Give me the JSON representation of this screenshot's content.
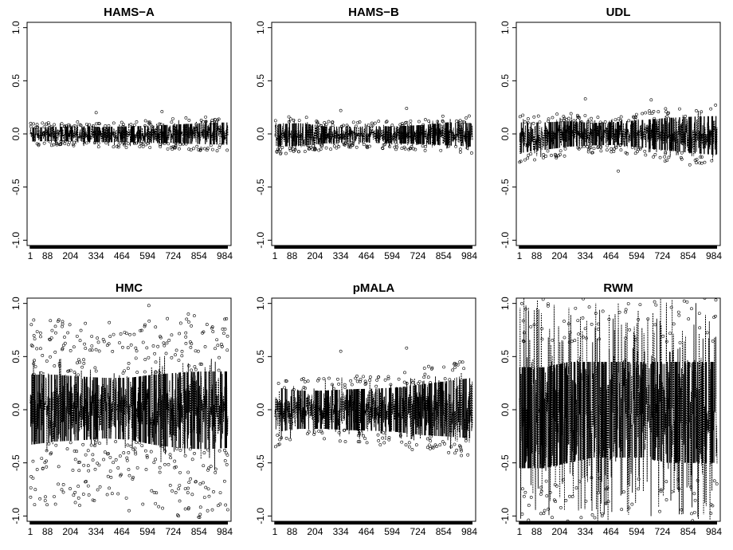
{
  "chart_data": [
    {
      "type": "line",
      "title": "HAMS−A",
      "xlabel": "",
      "ylabel": "",
      "ylim": [
        -1.05,
        1.05
      ],
      "y_ticks": [
        "-1.0",
        "-0.5",
        "0.0",
        "0.5",
        "1.0"
      ],
      "x_ticks": [
        "1",
        "88",
        "204",
        "334",
        "464",
        "594",
        "724",
        "854",
        "984"
      ],
      "x_range": [
        1,
        1000
      ],
      "center": 0.0,
      "envelope_low": [
        -0.12,
        -0.11,
        -0.12,
        -0.13,
        -0.13,
        -0.14,
        -0.15,
        -0.16,
        -0.17
      ],
      "envelope_high": [
        0.1,
        0.11,
        0.12,
        0.11,
        0.12,
        0.13,
        0.15,
        0.17,
        0.18
      ],
      "outliers_low": [],
      "outliers_high": [
        0.2,
        0.21
      ]
    },
    {
      "type": "line",
      "title": "HAMS−B",
      "xlabel": "",
      "ylabel": "",
      "ylim": [
        -1.05,
        1.05
      ],
      "y_ticks": [
        "-1.0",
        "-0.5",
        "0.0",
        "0.5",
        "1.0"
      ],
      "x_ticks": [
        "1",
        "88",
        "204",
        "334",
        "464",
        "594",
        "724",
        "854",
        "984"
      ],
      "x_range": [
        1,
        1000
      ],
      "center": 0.0,
      "envelope_low": [
        -0.2,
        -0.19,
        -0.15,
        -0.13,
        -0.14,
        -0.15,
        -0.16,
        -0.18,
        -0.2
      ],
      "envelope_high": [
        0.15,
        0.17,
        0.12,
        0.11,
        0.12,
        0.12,
        0.14,
        0.18,
        0.17
      ],
      "outliers_low": [],
      "outliers_high": [
        0.22,
        0.24
      ]
    },
    {
      "type": "line",
      "title": "UDL",
      "xlabel": "",
      "ylabel": "",
      "ylim": [
        -1.05,
        1.05
      ],
      "y_ticks": [
        "-1.0",
        "-0.5",
        "0.0",
        "0.5",
        "1.0"
      ],
      "x_ticks": [
        "1",
        "88",
        "204",
        "334",
        "464",
        "594",
        "724",
        "854",
        "984"
      ],
      "x_range": [
        1,
        1000
      ],
      "center": 0.0,
      "envelope_low": [
        -0.3,
        -0.25,
        -0.2,
        -0.18,
        -0.17,
        -0.22,
        -0.26,
        -0.3,
        -0.33
      ],
      "envelope_high": [
        0.18,
        0.18,
        0.2,
        0.17,
        0.19,
        0.22,
        0.25,
        0.27,
        0.28
      ],
      "outliers_low": [
        -0.35
      ],
      "outliers_high": [
        0.33,
        0.32
      ]
    },
    {
      "type": "line",
      "title": "HMC",
      "xlabel": "",
      "ylabel": "",
      "ylim": [
        -1.05,
        1.05
      ],
      "y_ticks": [
        "-1.0",
        "-0.5",
        "0.0",
        "0.5",
        "1.0"
      ],
      "x_ticks": [
        "1",
        "88",
        "204",
        "334",
        "464",
        "594",
        "724",
        "854",
        "984"
      ],
      "x_range": [
        1,
        1000
      ],
      "center": 0.0,
      "envelope_low": [
        -0.55,
        -0.5,
        -0.48,
        -0.45,
        -0.47,
        -0.55,
        -0.6,
        -0.62,
        -0.6
      ],
      "envelope_high": [
        0.55,
        0.55,
        0.52,
        0.5,
        0.5,
        0.55,
        0.58,
        0.6,
        0.6
      ],
      "outliers_low": [
        -0.9,
        -0.95,
        -1.0
      ],
      "outliers_high": [
        0.8,
        0.82,
        0.98,
        0.9
      ]
    },
    {
      "type": "line",
      "title": "pMALA",
      "xlabel": "",
      "ylabel": "",
      "ylim": [
        -1.05,
        1.05
      ],
      "y_ticks": [
        "-1.0",
        "-0.5",
        "0.0",
        "0.5",
        "1.0"
      ],
      "x_ticks": [
        "1",
        "88",
        "204",
        "334",
        "464",
        "594",
        "724",
        "854",
        "984"
      ],
      "x_range": [
        1,
        1000
      ],
      "center": 0.0,
      "envelope_low": [
        -0.35,
        -0.3,
        -0.3,
        -0.32,
        -0.33,
        -0.35,
        -0.4,
        -0.42,
        -0.45
      ],
      "envelope_high": [
        0.35,
        0.3,
        0.3,
        0.32,
        0.33,
        0.35,
        0.4,
        0.45,
        0.5
      ],
      "outliers_low": [],
      "outliers_high": [
        0.55,
        0.58
      ]
    },
    {
      "type": "line",
      "title": "RWM",
      "xlabel": "",
      "ylabel": "",
      "ylim": [
        -1.05,
        1.05
      ],
      "y_ticks": [
        "-1.0",
        "-0.5",
        "0.0",
        "0.5",
        "1.0"
      ],
      "x_ticks": [
        "1",
        "88",
        "204",
        "334",
        "464",
        "594",
        "724",
        "854",
        "984"
      ],
      "x_range": [
        1,
        1000
      ],
      "center": 0.0,
      "envelope_low": [
        -1.05,
        -1.05,
        -1.05,
        -1.05,
        -1.05,
        -1.05,
        -1.05,
        -1.05,
        -1.05
      ],
      "envelope_high": [
        1.05,
        1.05,
        1.05,
        1.05,
        1.05,
        1.05,
        1.05,
        1.05,
        1.05
      ],
      "inner_low": [
        -0.55,
        -0.55,
        -0.5,
        -0.45,
        -0.45,
        -0.45,
        -0.5,
        -0.5,
        -0.5
      ],
      "inner_high": [
        0.4,
        0.4,
        0.45,
        0.45,
        0.45,
        0.45,
        0.45,
        0.45,
        0.45
      ],
      "outliers_low": [],
      "outliers_high": []
    }
  ]
}
